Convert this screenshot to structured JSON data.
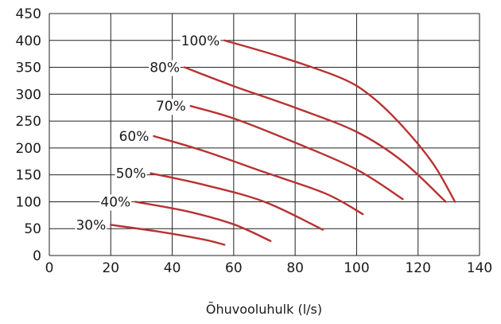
{
  "chart_data": {
    "type": "line",
    "title": "",
    "xlabel": "Õhuvooluhulk (l/s)",
    "ylabel": "",
    "xlim": [
      0,
      140
    ],
    "ylim": [
      0,
      450
    ],
    "x_ticks": [
      0,
      20,
      40,
      60,
      80,
      100,
      120,
      140
    ],
    "y_ticks": [
      0,
      50,
      100,
      150,
      200,
      250,
      300,
      350,
      400,
      450
    ],
    "grid": true,
    "line_color": "#b83232",
    "series": [
      {
        "name": "100%",
        "points": [
          [
            57,
            400
          ],
          [
            75,
            370
          ],
          [
            95,
            330
          ],
          [
            105,
            295
          ],
          [
            115,
            240
          ],
          [
            125,
            170
          ],
          [
            132,
            100
          ]
        ]
      },
      {
        "name": "80%",
        "points": [
          [
            44,
            350
          ],
          [
            60,
            315
          ],
          [
            80,
            275
          ],
          [
            100,
            230
          ],
          [
            115,
            175
          ],
          [
            129,
            100
          ]
        ]
      },
      {
        "name": "70%",
        "points": [
          [
            46,
            278
          ],
          [
            60,
            255
          ],
          [
            80,
            210
          ],
          [
            100,
            160
          ],
          [
            115,
            105
          ]
        ]
      },
      {
        "name": "60%",
        "points": [
          [
            34,
            222
          ],
          [
            50,
            195
          ],
          [
            70,
            155
          ],
          [
            90,
            115
          ],
          [
            102,
            77
          ]
        ]
      },
      {
        "name": "50%",
        "points": [
          [
            33,
            153
          ],
          [
            50,
            132
          ],
          [
            70,
            100
          ],
          [
            89,
            48
          ]
        ]
      },
      {
        "name": "40%",
        "points": [
          [
            28,
            100
          ],
          [
            45,
            82
          ],
          [
            60,
            58
          ],
          [
            72,
            27
          ]
        ]
      },
      {
        "name": "30%",
        "points": [
          [
            20,
            57
          ],
          [
            35,
            45
          ],
          [
            50,
            30
          ],
          [
            57,
            20
          ]
        ]
      }
    ]
  }
}
